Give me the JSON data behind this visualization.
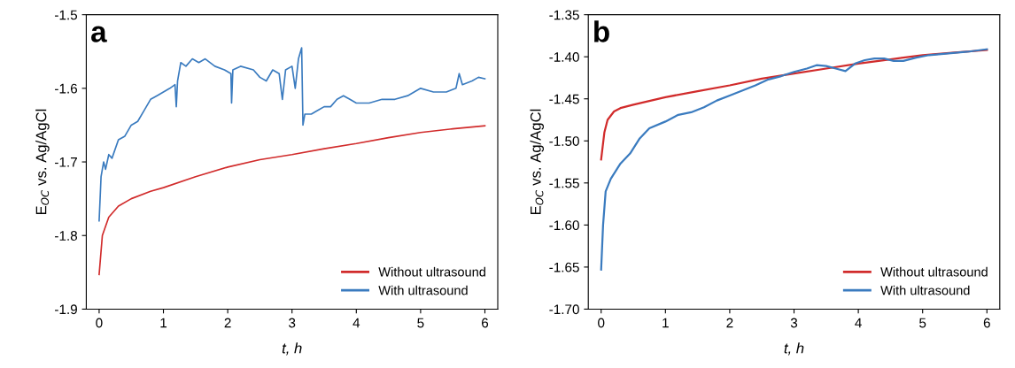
{
  "chart_data": [
    {
      "type": "line",
      "xlabel": "t, h",
      "ylabel": "E$_{OC}$ vs. Ag/AgCl",
      "annotations": [
        "a"
      ],
      "xlim": [
        -0.2,
        6.2
      ],
      "ylim": [
        -1.9,
        -1.5
      ],
      "xticks": [
        0,
        1,
        2,
        3,
        4,
        5,
        6
      ],
      "yticks": [
        -1.9,
        -1.8,
        -1.7,
        -1.6,
        -1.5
      ],
      "legend": "bottom right",
      "grid": false,
      "series": [
        {
          "name": "Without ultrasound",
          "color": "#d12b2b",
          "x": [
            0,
            0.05,
            0.15,
            0.3,
            0.5,
            0.8,
            1,
            1.5,
            2,
            2.5,
            3,
            3.5,
            4,
            4.5,
            5,
            5.5,
            6
          ],
          "values": [
            -1.853,
            -1.8,
            -1.775,
            -1.76,
            -1.75,
            -1.74,
            -1.735,
            -1.72,
            -1.707,
            -1.697,
            -1.69,
            -1.682,
            -1.675,
            -1.667,
            -1.66,
            -1.655,
            -1.651
          ]
        },
        {
          "name": "With ultrasound",
          "color": "#3a7bbf",
          "x": [
            0,
            0.03,
            0.07,
            0.1,
            0.15,
            0.2,
            0.3,
            0.4,
            0.5,
            0.6,
            0.7,
            0.8,
            0.9,
            1.0,
            1.1,
            1.18,
            1.2,
            1.22,
            1.27,
            1.35,
            1.45,
            1.55,
            1.65,
            1.8,
            1.95,
            2.05,
            2.06,
            2.08,
            2.2,
            2.4,
            2.5,
            2.6,
            2.7,
            2.8,
            2.85,
            2.9,
            3.0,
            3.05,
            3.1,
            3.15,
            3.17,
            3.2,
            3.3,
            3.4,
            3.5,
            3.6,
            3.7,
            3.8,
            3.9,
            4.0,
            4.2,
            4.4,
            4.6,
            4.8,
            5.0,
            5.2,
            5.4,
            5.55,
            5.6,
            5.65,
            5.8,
            5.9,
            6.0
          ],
          "values": [
            -1.78,
            -1.72,
            -1.7,
            -1.71,
            -1.69,
            -1.695,
            -1.67,
            -1.665,
            -1.65,
            -1.645,
            -1.63,
            -1.615,
            -1.61,
            -1.605,
            -1.6,
            -1.595,
            -1.625,
            -1.59,
            -1.565,
            -1.57,
            -1.56,
            -1.565,
            -1.56,
            -1.57,
            -1.575,
            -1.58,
            -1.62,
            -1.575,
            -1.57,
            -1.575,
            -1.585,
            -1.59,
            -1.575,
            -1.58,
            -1.615,
            -1.575,
            -1.57,
            -1.6,
            -1.56,
            -1.545,
            -1.65,
            -1.635,
            -1.635,
            -1.63,
            -1.625,
            -1.625,
            -1.615,
            -1.61,
            -1.615,
            -1.62,
            -1.62,
            -1.615,
            -1.615,
            -1.61,
            -1.6,
            -1.605,
            -1.605,
            -1.6,
            -1.58,
            -1.595,
            -1.59,
            -1.585,
            -1.587
          ]
        }
      ]
    },
    {
      "type": "line",
      "xlabel": "t, h",
      "ylabel": "E$_{OC}$ vs. Ag/AgCl",
      "annotations": [
        "b"
      ],
      "xlim": [
        -0.2,
        6.2
      ],
      "ylim": [
        -1.7,
        -1.35
      ],
      "xticks": [
        0,
        1,
        2,
        3,
        4,
        5,
        6
      ],
      "yticks": [
        {
          "value": -1.7,
          "label": "-1.70"
        },
        {
          "value": -1.65,
          "label": "-1.65"
        },
        {
          "value": -1.6,
          "label": "-1.60"
        },
        {
          "value": -1.55,
          "label": "-1.55"
        },
        {
          "value": -1.5,
          "label": "-1.50"
        },
        {
          "value": -1.45,
          "label": "-1.45"
        },
        {
          "value": -1.4,
          "label": "-1.40"
        },
        {
          "value": -1.35,
          "label": "-1.35"
        }
      ],
      "legend": "bottom right",
      "grid": false,
      "series": [
        {
          "name": "Without ultrasound",
          "color": "#d12b2b",
          "x": [
            0,
            0.05,
            0.1,
            0.2,
            0.3,
            0.5,
            1,
            1.5,
            2,
            2.5,
            3,
            3.5,
            4,
            4.5,
            5,
            5.5,
            6
          ],
          "values": [
            -1.522,
            -1.49,
            -1.475,
            -1.465,
            -1.461,
            -1.457,
            -1.448,
            -1.441,
            -1.434,
            -1.426,
            -1.42,
            -1.414,
            -1.408,
            -1.403,
            -1.398,
            -1.395,
            -1.392
          ]
        },
        {
          "name": "With ultrasound",
          "color": "#3a7bbf",
          "x": [
            0,
            0.03,
            0.07,
            0.15,
            0.3,
            0.45,
            0.6,
            0.75,
            1,
            1.2,
            1.4,
            1.6,
            1.8,
            2,
            2.2,
            2.4,
            2.6,
            2.8,
            3,
            3.2,
            3.35,
            3.5,
            3.65,
            3.8,
            3.95,
            4.1,
            4.25,
            4.4,
            4.55,
            4.7,
            4.9,
            5.1,
            5.4,
            5.7,
            6
          ],
          "values": [
            -1.653,
            -1.6,
            -1.56,
            -1.545,
            -1.527,
            -1.515,
            -1.497,
            -1.485,
            -1.477,
            -1.469,
            -1.466,
            -1.46,
            -1.452,
            -1.446,
            -1.44,
            -1.434,
            -1.427,
            -1.423,
            -1.418,
            -1.414,
            -1.41,
            -1.411,
            -1.414,
            -1.417,
            -1.408,
            -1.404,
            -1.402,
            -1.402,
            -1.405,
            -1.405,
            -1.401,
            -1.398,
            -1.396,
            -1.394,
            -1.391
          ]
        }
      ]
    }
  ]
}
